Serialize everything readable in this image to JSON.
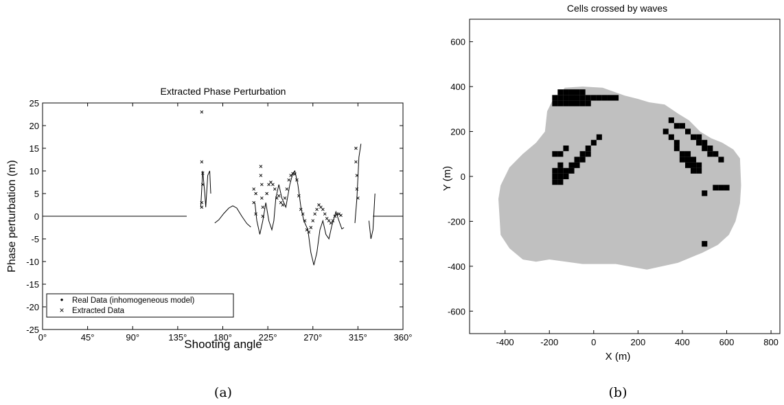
{
  "panels": [
    {
      "caption": "(a)",
      "chart_data": {
        "type": "line",
        "title": "Extracted Phase Perturbation",
        "xlabel": "Shooting angle",
        "ylabel": "Phase perturbation (m)",
        "xlim": [
          0,
          360
        ],
        "ylim": [
          -25,
          25
        ],
        "x_ticks": [
          0,
          45,
          90,
          135,
          180,
          225,
          270,
          315,
          360
        ],
        "x_tick_labels": [
          "0°",
          "45°",
          "90°",
          "135°",
          "180°",
          "225°",
          "270°",
          "315°",
          "360°"
        ],
        "y_ticks": [
          25,
          20,
          15,
          10,
          5,
          0,
          -5,
          -10,
          -15,
          -20,
          -25
        ],
        "y_tick_labels": [
          "25",
          "20",
          "15",
          "10",
          "5",
          "0",
          "-5",
          "-10",
          "-15",
          "-20",
          "-25"
        ],
        "legend": {
          "position": "bottom-left",
          "entries": [
            {
              "marker": "•",
              "label": "Real Data (inhomogeneous model)"
            },
            {
              "marker": "×",
              "label": "Extracted Data"
            }
          ]
        },
        "series": [
          {
            "name": "Real Data (inhomogeneous model)",
            "style": "line",
            "segments": [
              [
                [
                  0,
                  0
                ],
                [
                  144,
                  0
                ]
              ],
              [
                [
                  158,
                  2
                ],
                [
                  160,
                  10
                ],
                [
                  162,
                  5
                ],
                [
                  163,
                  2
                ],
                [
                  165,
                  9
                ],
                [
                  167,
                  10
                ],
                [
                  168,
                  5
                ]
              ],
              [
                [
                  172,
                  -1.5
                ],
                [
                  176,
                  -0.8
                ],
                [
                  181,
                  0.6
                ],
                [
                  186,
                  1.8
                ],
                [
                  190,
                  2.3
                ],
                [
                  194,
                  1.8
                ],
                [
                  199,
                  0
                ],
                [
                  204,
                  -1.6
                ],
                [
                  208,
                  -2.4
                ]
              ],
              [
                [
                  212,
                  3
                ],
                [
                  214,
                  -1
                ],
                [
                  217,
                  -4
                ],
                [
                  220,
                  -1
                ],
                [
                  223,
                  3
                ],
                [
                  226,
                  -1
                ],
                [
                  229,
                  -3
                ],
                [
                  231,
                  -1
                ],
                [
                  233,
                  4
                ],
                [
                  236,
                  7
                ],
                [
                  239,
                  4
                ],
                [
                  243,
                  2
                ],
                [
                  247,
                  7
                ],
                [
                  250,
                  9.5
                ],
                [
                  252,
                  10
                ],
                [
                  255,
                  7
                ],
                [
                  258,
                  2
                ],
                [
                  261,
                  -1
                ],
                [
                  265,
                  -3
                ],
                [
                  268,
                  -8
                ],
                [
                  271,
                  -10.8
                ],
                [
                  274,
                  -8
                ],
                [
                  277,
                  -3
                ],
                [
                  280,
                  -1
                ],
                [
                  283,
                  -4
                ],
                [
                  286,
                  -5
                ],
                [
                  289,
                  -2
                ],
                [
                  293,
                  1
                ],
                [
                  296,
                  -1
                ],
                [
                  299,
                  -2.8
                ],
                [
                  301,
                  -2.5
                ]
              ],
              [
                [
                  312,
                  -1.5
                ],
                [
                  314,
                  4
                ],
                [
                  316,
                  13
                ],
                [
                  318,
                  16
                ]
              ],
              [
                [
                  326,
                  -1
                ],
                [
                  328,
                  -5
                ],
                [
                  330,
                  -3
                ],
                [
                  332,
                  5
                ]
              ],
              [
                [
                  330,
                  0
                ],
                [
                  360,
                  0
                ]
              ]
            ]
          },
          {
            "name": "Extracted Data",
            "style": "x",
            "segments": [
              [
                [
                  159,
                  23
                ],
                [
                  159,
                  12
                ],
                [
                  159,
                  3
                ],
                [
                  159,
                  2
                ],
                [
                  160,
                  9.5
                ],
                [
                  160,
                  7
                ]
              ],
              [
                [
                  211,
                  6
                ],
                [
                  211,
                  3
                ],
                [
                  213,
                  5
                ],
                [
                  213,
                  0.5
                ],
                [
                  218,
                  11
                ],
                [
                  218,
                  9
                ],
                [
                  219,
                  7
                ],
                [
                  219,
                  4
                ],
                [
                  220,
                  2
                ],
                [
                  220,
                  0
                ]
              ],
              [
                [
                  224,
                  5
                ],
                [
                  226,
                  7
                ],
                [
                  228,
                  7.5
                ],
                [
                  230,
                  7
                ],
                [
                  232,
                  6
                ],
                [
                  234,
                  4
                ],
                [
                  236,
                  4.5
                ],
                [
                  238,
                  3
                ],
                [
                  240,
                  2.5
                ],
                [
                  242,
                  4
                ],
                [
                  244,
                  6
                ],
                [
                  246,
                  8
                ],
                [
                  248,
                  9
                ],
                [
                  250,
                  9.4
                ],
                [
                  252,
                  9.3
                ],
                [
                  254,
                  8
                ],
                [
                  256,
                  4.5
                ],
                [
                  258,
                  1.5
                ],
                [
                  260,
                  0.5
                ],
                [
                  262,
                  -1
                ],
                [
                  264,
                  -3
                ],
                [
                  266,
                  -3.5
                ],
                [
                  268,
                  -2.5
                ],
                [
                  270,
                  -1
                ],
                [
                  272,
                  0.5
                ],
                [
                  274,
                  1.5
                ],
                [
                  276,
                  2.5
                ],
                [
                  278,
                  2
                ],
                [
                  280,
                  1.5
                ],
                [
                  282,
                  0.5
                ],
                [
                  284,
                  -0.5
                ],
                [
                  286,
                  -1
                ],
                [
                  288,
                  -1.5
                ],
                [
                  290,
                  -1
                ],
                [
                  292,
                  0
                ],
                [
                  294,
                  0.5
                ],
                [
                  296,
                  0.5
                ],
                [
                  298,
                  0.2
                ]
              ],
              [
                [
                  313,
                  15
                ],
                [
                  313,
                  12
                ],
                [
                  314,
                  9
                ],
                [
                  314,
                  6
                ],
                [
                  315,
                  4
                ]
              ]
            ]
          }
        ]
      }
    },
    {
      "caption": "(b)",
      "chart_data": {
        "type": "heatmap",
        "title": "Cells crossed by waves",
        "xlabel": "X (m)",
        "ylabel": "Y (m)",
        "xlim": [
          -560,
          840
        ],
        "ylim": [
          -700,
          700
        ],
        "x_ticks": [
          -400,
          -200,
          0,
          200,
          400,
          600,
          800
        ],
        "x_tick_labels": [
          "-400",
          "-200",
          "0",
          "200",
          "400",
          "600",
          "800"
        ],
        "y_ticks": [
          600,
          400,
          200,
          0,
          -200,
          -400,
          -600
        ],
        "y_tick_labels": [
          "600",
          "400",
          "200",
          "0",
          "-200",
          "-400",
          "-600"
        ],
        "cell_size": 25,
        "colors": {
          "crossed": "#c0c0c0",
          "dense": "#000000"
        },
        "gray_region_polygon": [
          [
            -130,
            395
          ],
          [
            -50,
            400
          ],
          [
            40,
            395
          ],
          [
            140,
            360
          ],
          [
            200,
            345
          ],
          [
            250,
            330
          ],
          [
            320,
            320
          ],
          [
            380,
            280
          ],
          [
            430,
            250
          ],
          [
            480,
            200
          ],
          [
            530,
            170
          ],
          [
            580,
            150
          ],
          [
            630,
            120
          ],
          [
            660,
            80
          ],
          [
            665,
            -40
          ],
          [
            660,
            -120
          ],
          [
            640,
            -200
          ],
          [
            610,
            -260
          ],
          [
            560,
            -305
          ],
          [
            490,
            -340
          ],
          [
            380,
            -385
          ],
          [
            240,
            -415
          ],
          [
            100,
            -390
          ],
          [
            -50,
            -390
          ],
          [
            -200,
            -370
          ],
          [
            -260,
            -380
          ],
          [
            -320,
            -370
          ],
          [
            -380,
            -320
          ],
          [
            -420,
            -260
          ],
          [
            -430,
            -100
          ],
          [
            -420,
            -40
          ],
          [
            -380,
            40
          ],
          [
            -320,
            100
          ],
          [
            -260,
            150
          ],
          [
            -220,
            200
          ],
          [
            -210,
            290
          ],
          [
            -190,
            330
          ]
        ],
        "black_cells": [
          [
            -150,
            375
          ],
          [
            -125,
            375
          ],
          [
            -100,
            375
          ],
          [
            -75,
            375
          ],
          [
            -50,
            375
          ],
          [
            -175,
            350
          ],
          [
            -150,
            350
          ],
          [
            -125,
            350
          ],
          [
            -100,
            350
          ],
          [
            -75,
            350
          ],
          [
            -50,
            350
          ],
          [
            -25,
            350
          ],
          [
            0,
            350
          ],
          [
            25,
            350
          ],
          [
            50,
            350
          ],
          [
            75,
            350
          ],
          [
            100,
            350
          ],
          [
            -175,
            325
          ],
          [
            -150,
            325
          ],
          [
            -125,
            325
          ],
          [
            -100,
            325
          ],
          [
            -75,
            325
          ],
          [
            -50,
            325
          ],
          [
            -25,
            325
          ],
          [
            -175,
            100
          ],
          [
            -150,
            100
          ],
          [
            -125,
            125
          ],
          [
            -150,
            50
          ],
          [
            -175,
            25
          ],
          [
            -150,
            25
          ],
          [
            -125,
            25
          ],
          [
            -175,
            0
          ],
          [
            -150,
            0
          ],
          [
            -125,
            0
          ],
          [
            -100,
            25
          ],
          [
            -100,
            50
          ],
          [
            -75,
            50
          ],
          [
            -75,
            75
          ],
          [
            -50,
            75
          ],
          [
            -50,
            100
          ],
          [
            -25,
            100
          ],
          [
            -25,
            125
          ],
          [
            0,
            150
          ],
          [
            25,
            175
          ],
          [
            -175,
            -25
          ],
          [
            -150,
            -25
          ],
          [
            325,
            200
          ],
          [
            350,
            250
          ],
          [
            350,
            175
          ],
          [
            375,
            225
          ],
          [
            400,
            225
          ],
          [
            375,
            150
          ],
          [
            375,
            125
          ],
          [
            400,
            100
          ],
          [
            400,
            75
          ],
          [
            425,
            200
          ],
          [
            425,
            100
          ],
          [
            425,
            75
          ],
          [
            425,
            50
          ],
          [
            450,
            175
          ],
          [
            450,
            75
          ],
          [
            450,
            50
          ],
          [
            450,
            25
          ],
          [
            475,
            175
          ],
          [
            475,
            150
          ],
          [
            475,
            50
          ],
          [
            475,
            25
          ],
          [
            500,
            150
          ],
          [
            500,
            125
          ],
          [
            525,
            125
          ],
          [
            525,
            100
          ],
          [
            550,
            100
          ],
          [
            575,
            75
          ],
          [
            550,
            -50
          ],
          [
            575,
            -50
          ],
          [
            600,
            -50
          ],
          [
            500,
            -75
          ],
          [
            500,
            -300
          ]
        ]
      }
    }
  ]
}
